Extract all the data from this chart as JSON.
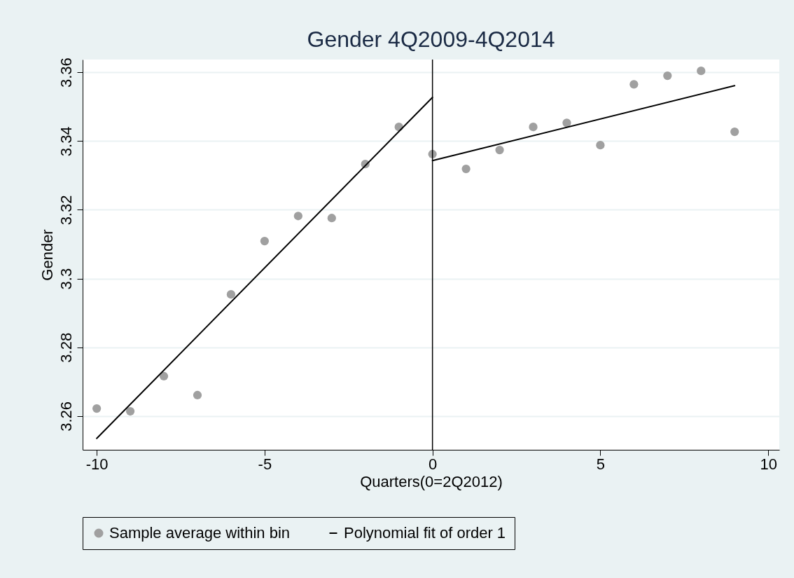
{
  "chart_data": {
    "type": "scatter",
    "title": "Gender 4Q2009-4Q2014",
    "xlabel": "Quarters(0=2Q2012)",
    "ylabel": "Gender",
    "xlim": [
      -10.42,
      10.33
    ],
    "ylim": [
      3.2502,
      3.3637
    ],
    "xticks": [
      -10,
      -5,
      0,
      5,
      10
    ],
    "yticks": [
      3.26,
      3.28,
      3.3,
      3.32,
      3.34,
      3.36
    ],
    "grid": "y",
    "legend": "bottom",
    "series": [
      {
        "name": "Sample average within bin",
        "color": "#a0a0a0",
        "x": [
          -10,
          -9,
          -8,
          -7,
          -6,
          -5,
          -4,
          -3,
          -2,
          -1,
          0,
          1,
          2,
          3,
          4,
          5,
          6,
          7,
          8,
          9
        ],
        "values": [
          3.2622,
          3.2614,
          3.2716,
          3.2661,
          3.2954,
          3.3109,
          3.3182,
          3.3176,
          3.3333,
          3.3441,
          3.3362,
          3.3319,
          3.3374,
          3.3441,
          3.3453,
          3.3388,
          3.3565,
          3.359,
          3.3604,
          3.3427
        ]
      },
      {
        "name": "Polynomial fit of order 1",
        "type": "line",
        "color": "#000000",
        "x": [
          -10,
          0
        ],
        "values": [
          3.2535,
          3.3527
        ]
      },
      {
        "type": "line",
        "color": "#000000",
        "x": [
          0,
          9
        ],
        "values": [
          3.3343,
          3.3561
        ]
      }
    ],
    "ref_lines": [
      {
        "axis": "x",
        "value": 0,
        "color": "#000000"
      }
    ]
  }
}
